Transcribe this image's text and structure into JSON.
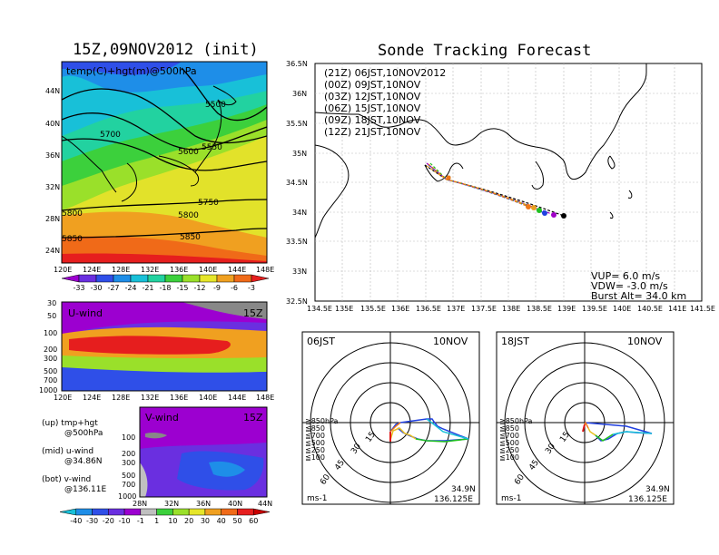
{
  "left_title": "15Z,09NOV2012 (init)",
  "right_title": "Sonde Tracking Forecast",
  "map500": {
    "label": "temp(C)+hgt(m)@500hPa",
    "lat_ticks": [
      "44N",
      "40N",
      "36N",
      "32N",
      "28N",
      "24N"
    ],
    "lon_ticks": [
      "120E",
      "124E",
      "128E",
      "132E",
      "136E",
      "140E",
      "144E",
      "148E"
    ],
    "contour_labels": [
      "5500",
      "5550",
      "5600",
      "5700",
      "5750",
      "5800",
      "5800",
      "5850",
      "5850"
    ]
  },
  "temp_colorbar": {
    "labels": [
      "-33",
      "-30",
      "-27",
      "-24",
      "-21",
      "-18",
      "-15",
      "-12",
      "-9",
      "-6",
      "-3"
    ],
    "colors": [
      "#9c00d0",
      "#6a2fe0",
      "#2f4fe8",
      "#1e8ee8",
      "#18c0d8",
      "#22d2a0",
      "#3cd03c",
      "#9ae02a",
      "#e6e62a",
      "#f0a020",
      "#f06a18",
      "#e61e1e"
    ]
  },
  "uwind": {
    "label": "U-wind",
    "time": "15Z",
    "lev_ticks": [
      "30",
      "50",
      "100",
      "200",
      "300",
      "500",
      "700",
      "1000"
    ],
    "lon_ticks": [
      "120E",
      "124E",
      "128E",
      "132E",
      "136E",
      "140E",
      "144E",
      "148E"
    ]
  },
  "vwind": {
    "label": "V-wind",
    "time": "15Z",
    "lev_ticks": [
      "100",
      "200",
      "300",
      "500",
      "700",
      "1000"
    ],
    "lat_ticks": [
      "28N",
      "32N",
      "36N",
      "40N",
      "44N"
    ]
  },
  "side_notes": [
    "(up) tmp+hgt",
    "@500hPa",
    "(mid) u-wind",
    "@34.86N",
    "(bot) v-wind",
    "@136.11E"
  ],
  "wind_colorbar": {
    "labels": [
      "-40",
      "-30",
      "-20",
      "-10",
      "-1",
      "1",
      "10",
      "20",
      "30",
      "40",
      "50",
      "60"
    ],
    "colors": [
      "#18c0d8",
      "#1e8ee8",
      "#2f4fe8",
      "#6a2fe0",
      "#9c00d0",
      "#c0c0c0",
      "#3cd03c",
      "#9ae02a",
      "#e6e62a",
      "#f0a020",
      "#f06a18",
      "#e61e1e",
      "#c80000"
    ]
  },
  "track_map": {
    "lat_ticks": [
      "36.5N",
      "36N",
      "35.5N",
      "35N",
      "34.5N",
      "34N",
      "33.5N",
      "33N",
      "32.5N"
    ],
    "lon_ticks": [
      "134.5E",
      "135E",
      "135.5E",
      "136E",
      "136.5E",
      "137E",
      "137.5E",
      "138E",
      "138.5E",
      "139E",
      "139.5E",
      "140E",
      "140.5E",
      "141E",
      "141.5E"
    ],
    "legend": [
      {
        "text": "(21Z)  06JST,10NOV2012",
        "color": "#000000"
      },
      {
        "text": "(00Z)  09JST,10NOV",
        "color": "#a000c8"
      },
      {
        "text": "(03Z)  12JST,10NOV",
        "color": "#2040e0"
      },
      {
        "text": "(06Z)  15JST,10NOV",
        "color": "#20c020"
      },
      {
        "text": "(09Z)  18JST,10NOV",
        "color": "#e8a020"
      },
      {
        "text": "(12Z)  21JST,10NOV",
        "color": "#f07818"
      }
    ],
    "params": [
      "VUP=  6.0  m/s",
      "VDW=  -3.0  m/s",
      "Burst Alt=  34.0  km"
    ]
  },
  "hodo_left": {
    "time": "06JST",
    "date": "10NOV",
    "unit": "ms-1",
    "lat": "34.9N",
    "lon": "136.125E",
    "ring_labels": [
      "15",
      "30",
      "45",
      "60"
    ],
    "levels": [
      "≧850hPa",
      "≦850",
      "≦700",
      "≦500",
      "≦250",
      "≦100"
    ],
    "level_colors": [
      "#e01818",
      "#f07818",
      "#e8c020",
      "#20c020",
      "#18c0d8",
      "#2040e0"
    ]
  },
  "hodo_right": {
    "time": "18JST",
    "date": "10NOV",
    "unit": "ms-1",
    "lat": "34.9N",
    "lon": "136.125E",
    "ring_labels": [
      "15",
      "30",
      "45",
      "60"
    ],
    "levels": [
      "≧850hPa",
      "≦850",
      "≦700",
      "≦500",
      "≦250",
      "≦100"
    ],
    "level_colors": [
      "#e01818",
      "#f07818",
      "#e8c020",
      "#20c020",
      "#18c0d8",
      "#2040e0"
    ]
  }
}
